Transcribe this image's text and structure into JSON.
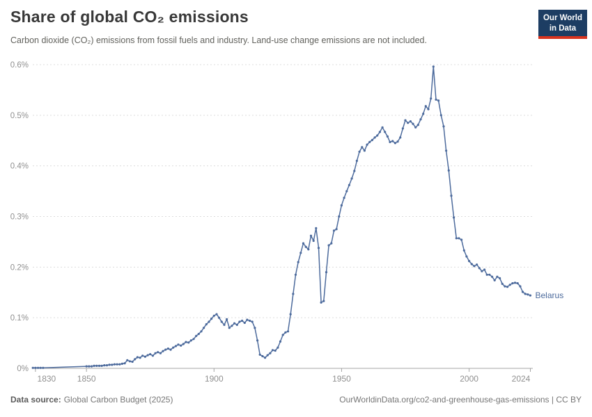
{
  "header": {
    "title": "Share of global CO₂ emissions",
    "subtitle": "Carbon dioxide (CO₂) emissions from fossil fuels and industry. Land-use change emissions are not included.",
    "logo": {
      "line1": "Our World",
      "line2": "in Data",
      "bg_color": "#1d3d63",
      "accent_color": "#d8331e"
    }
  },
  "chart_data": {
    "type": "line",
    "title": "Share of global CO₂ emissions",
    "xlabel": "",
    "ylabel": "",
    "unit": "%",
    "grid": "horizontal-dashed",
    "legend_position": "end-of-line-label",
    "xlim": [
      1829,
      2024
    ],
    "ylim": [
      0,
      0.6
    ],
    "x_tick_values": [
      1830,
      1850,
      1900,
      1950,
      2000,
      2024
    ],
    "x_tick_labels": [
      "1830",
      "1850",
      "1900",
      "1950",
      "2000",
      "2024"
    ],
    "y_tick_values": [
      0,
      0.1,
      0.2,
      0.3,
      0.4,
      0.5,
      0.6
    ],
    "y_tick_labels": [
      "0%",
      "0.1%",
      "0.2%",
      "0.3%",
      "0.4%",
      "0.5%",
      "0.6%"
    ],
    "series": [
      {
        "name": "Belarus",
        "color": "#4C6A9C",
        "points": [
          [
            1829,
            0.001
          ],
          [
            1830,
            0.001
          ],
          [
            1831,
            0.001
          ],
          [
            1832,
            0.001
          ],
          [
            1833,
            0.001
          ],
          [
            1850,
            0.004
          ],
          [
            1851,
            0.004
          ],
          [
            1852,
            0.004
          ],
          [
            1853,
            0.005
          ],
          [
            1854,
            0.005
          ],
          [
            1855,
            0.005
          ],
          [
            1856,
            0.005
          ],
          [
            1857,
            0.006
          ],
          [
            1858,
            0.006
          ],
          [
            1859,
            0.007
          ],
          [
            1860,
            0.007
          ],
          [
            1861,
            0.008
          ],
          [
            1862,
            0.008
          ],
          [
            1863,
            0.008
          ],
          [
            1864,
            0.009
          ],
          [
            1865,
            0.01
          ],
          [
            1866,
            0.016
          ],
          [
            1867,
            0.014
          ],
          [
            1868,
            0.013
          ],
          [
            1869,
            0.018
          ],
          [
            1870,
            0.022
          ],
          [
            1871,
            0.021
          ],
          [
            1872,
            0.025
          ],
          [
            1873,
            0.023
          ],
          [
            1874,
            0.026
          ],
          [
            1875,
            0.028
          ],
          [
            1876,
            0.025
          ],
          [
            1877,
            0.03
          ],
          [
            1878,
            0.032
          ],
          [
            1879,
            0.03
          ],
          [
            1880,
            0.034
          ],
          [
            1881,
            0.037
          ],
          [
            1882,
            0.039
          ],
          [
            1883,
            0.037
          ],
          [
            1884,
            0.041
          ],
          [
            1885,
            0.044
          ],
          [
            1886,
            0.047
          ],
          [
            1887,
            0.045
          ],
          [
            1888,
            0.048
          ],
          [
            1889,
            0.052
          ],
          [
            1890,
            0.051
          ],
          [
            1891,
            0.055
          ],
          [
            1892,
            0.058
          ],
          [
            1893,
            0.064
          ],
          [
            1894,
            0.068
          ],
          [
            1895,
            0.073
          ],
          [
            1896,
            0.08
          ],
          [
            1897,
            0.087
          ],
          [
            1898,
            0.092
          ],
          [
            1899,
            0.098
          ],
          [
            1900,
            0.104
          ],
          [
            1901,
            0.107
          ],
          [
            1902,
            0.1
          ],
          [
            1903,
            0.092
          ],
          [
            1904,
            0.086
          ],
          [
            1905,
            0.097
          ],
          [
            1906,
            0.08
          ],
          [
            1907,
            0.084
          ],
          [
            1908,
            0.089
          ],
          [
            1909,
            0.086
          ],
          [
            1910,
            0.092
          ],
          [
            1911,
            0.094
          ],
          [
            1912,
            0.09
          ],
          [
            1913,
            0.096
          ],
          [
            1914,
            0.094
          ],
          [
            1915,
            0.092
          ],
          [
            1916,
            0.08
          ],
          [
            1917,
            0.055
          ],
          [
            1918,
            0.027
          ],
          [
            1919,
            0.024
          ],
          [
            1920,
            0.021
          ],
          [
            1921,
            0.026
          ],
          [
            1922,
            0.03
          ],
          [
            1923,
            0.036
          ],
          [
            1924,
            0.035
          ],
          [
            1925,
            0.041
          ],
          [
            1926,
            0.053
          ],
          [
            1927,
            0.066
          ],
          [
            1928,
            0.071
          ],
          [
            1929,
            0.073
          ],
          [
            1930,
            0.107
          ],
          [
            1931,
            0.147
          ],
          [
            1932,
            0.185
          ],
          [
            1933,
            0.21
          ],
          [
            1934,
            0.228
          ],
          [
            1935,
            0.247
          ],
          [
            1936,
            0.24
          ],
          [
            1937,
            0.235
          ],
          [
            1938,
            0.262
          ],
          [
            1939,
            0.252
          ],
          [
            1940,
            0.277
          ],
          [
            1941,
            0.238
          ],
          [
            1942,
            0.13
          ],
          [
            1943,
            0.133
          ],
          [
            1944,
            0.19
          ],
          [
            1945,
            0.243
          ],
          [
            1946,
            0.247
          ],
          [
            1947,
            0.272
          ],
          [
            1948,
            0.275
          ],
          [
            1949,
            0.3
          ],
          [
            1950,
            0.322
          ],
          [
            1951,
            0.337
          ],
          [
            1952,
            0.35
          ],
          [
            1953,
            0.362
          ],
          [
            1954,
            0.375
          ],
          [
            1955,
            0.39
          ],
          [
            1956,
            0.41
          ],
          [
            1957,
            0.428
          ],
          [
            1958,
            0.437
          ],
          [
            1959,
            0.43
          ],
          [
            1960,
            0.442
          ],
          [
            1961,
            0.447
          ],
          [
            1962,
            0.451
          ],
          [
            1963,
            0.456
          ],
          [
            1964,
            0.46
          ],
          [
            1965,
            0.467
          ],
          [
            1966,
            0.476
          ],
          [
            1967,
            0.467
          ],
          [
            1968,
            0.458
          ],
          [
            1969,
            0.447
          ],
          [
            1970,
            0.449
          ],
          [
            1971,
            0.445
          ],
          [
            1972,
            0.448
          ],
          [
            1973,
            0.456
          ],
          [
            1974,
            0.474
          ],
          [
            1975,
            0.49
          ],
          [
            1976,
            0.485
          ],
          [
            1977,
            0.488
          ],
          [
            1978,
            0.483
          ],
          [
            1979,
            0.476
          ],
          [
            1980,
            0.481
          ],
          [
            1981,
            0.492
          ],
          [
            1982,
            0.503
          ],
          [
            1983,
            0.518
          ],
          [
            1984,
            0.512
          ],
          [
            1985,
            0.533
          ],
          [
            1986,
            0.596
          ],
          [
            1987,
            0.531
          ],
          [
            1988,
            0.529
          ],
          [
            1989,
            0.5
          ],
          [
            1990,
            0.478
          ],
          [
            1991,
            0.43
          ],
          [
            1992,
            0.391
          ],
          [
            1993,
            0.341
          ],
          [
            1994,
            0.298
          ],
          [
            1995,
            0.257
          ],
          [
            1996,
            0.257
          ],
          [
            1997,
            0.254
          ],
          [
            1998,
            0.233
          ],
          [
            1999,
            0.221
          ],
          [
            2000,
            0.212
          ],
          [
            2001,
            0.206
          ],
          [
            2002,
            0.202
          ],
          [
            2003,
            0.205
          ],
          [
            2004,
            0.198
          ],
          [
            2005,
            0.192
          ],
          [
            2006,
            0.195
          ],
          [
            2007,
            0.185
          ],
          [
            2008,
            0.185
          ],
          [
            2009,
            0.181
          ],
          [
            2010,
            0.174
          ],
          [
            2011,
            0.181
          ],
          [
            2012,
            0.178
          ],
          [
            2013,
            0.167
          ],
          [
            2014,
            0.162
          ],
          [
            2015,
            0.161
          ],
          [
            2016,
            0.165
          ],
          [
            2017,
            0.168
          ],
          [
            2018,
            0.169
          ],
          [
            2019,
            0.168
          ],
          [
            2020,
            0.162
          ],
          [
            2021,
            0.151
          ],
          [
            2022,
            0.147
          ],
          [
            2023,
            0.146
          ],
          [
            2024,
            0.144
          ]
        ]
      }
    ]
  },
  "footer": {
    "source_label": "Data source:",
    "source_value": "Global Carbon Budget (2025)",
    "attribution": "OurWorldinData.org/co2-and-greenhouse-gas-emissions | CC BY"
  }
}
